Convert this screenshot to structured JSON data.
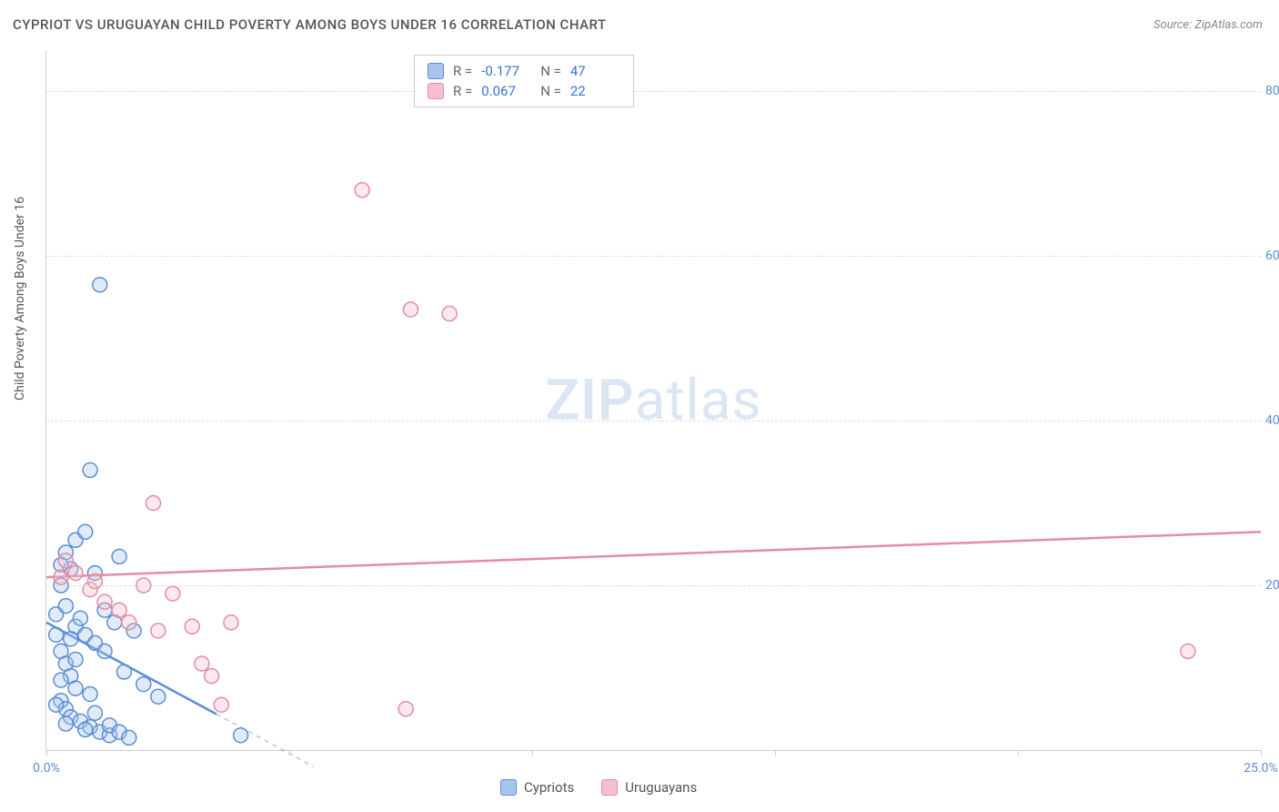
{
  "title": "CYPRIOT VS URUGUAYAN CHILD POVERTY AMONG BOYS UNDER 16 CORRELATION CHART",
  "source": "Source: ZipAtlas.com",
  "y_axis_label": "Child Poverty Among Boys Under 16",
  "watermark_bold": "ZIP",
  "watermark_rest": "atlas",
  "chart": {
    "type": "scatter",
    "xlim": [
      0,
      25
    ],
    "ylim": [
      0,
      85
    ],
    "y_ticks": [
      20,
      40,
      60,
      80
    ],
    "y_tick_labels": [
      "20.0%",
      "40.0%",
      "60.0%",
      "80.0%"
    ],
    "x_tick_positions": [
      0,
      5,
      10,
      15,
      20,
      25
    ],
    "x_labels": {
      "0": "0.0%",
      "25": "25.0%"
    },
    "grid_color": "#dddddd",
    "background_color": "#ffffff",
    "marker_radius": 8,
    "marker_stroke_width": 1.5,
    "marker_fill_opacity": 0.35,
    "series": [
      {
        "name": "Cypriots",
        "stroke": "#5b8dd6",
        "fill": "#a7c5ec",
        "R": "-0.177",
        "N": "47",
        "trend": {
          "x1": 0,
          "y1": 15.5,
          "x2": 5.5,
          "y2": -2,
          "solid_until_x": 3.5
        },
        "points": [
          [
            0.2,
            14.0
          ],
          [
            0.3,
            12.0
          ],
          [
            0.4,
            10.5
          ],
          [
            0.5,
            9.0
          ],
          [
            0.6,
            7.5
          ],
          [
            0.3,
            6.0
          ],
          [
            0.4,
            5.0
          ],
          [
            0.5,
            4.0
          ],
          [
            0.7,
            3.5
          ],
          [
            0.9,
            2.8
          ],
          [
            1.1,
            2.2
          ],
          [
            1.3,
            1.8
          ],
          [
            0.2,
            16.5
          ],
          [
            0.4,
            17.5
          ],
          [
            0.6,
            15.0
          ],
          [
            0.8,
            14.0
          ],
          [
            1.0,
            13.0
          ],
          [
            1.2,
            12.0
          ],
          [
            0.3,
            20.0
          ],
          [
            0.5,
            22.0
          ],
          [
            0.4,
            24.0
          ],
          [
            0.6,
            25.5
          ],
          [
            0.8,
            26.5
          ],
          [
            0.3,
            22.5
          ],
          [
            1.5,
            23.5
          ],
          [
            1.8,
            14.5
          ],
          [
            1.4,
            15.5
          ],
          [
            1.6,
            9.5
          ],
          [
            2.0,
            8.0
          ],
          [
            2.3,
            6.5
          ],
          [
            0.9,
            34.0
          ],
          [
            1.1,
            56.5
          ],
          [
            1.3,
            3.0
          ],
          [
            1.5,
            2.2
          ],
          [
            1.7,
            1.5
          ],
          [
            1.0,
            4.5
          ],
          [
            0.6,
            11.0
          ],
          [
            0.8,
            2.5
          ],
          [
            0.4,
            3.2
          ],
          [
            0.2,
            5.5
          ],
          [
            4.0,
            1.8
          ],
          [
            0.5,
            13.5
          ],
          [
            0.7,
            16.0
          ],
          [
            1.2,
            17.0
          ],
          [
            0.3,
            8.5
          ],
          [
            0.9,
            6.8
          ],
          [
            1.0,
            21.5
          ]
        ]
      },
      {
        "name": "Uruguayans",
        "stroke": "#e68aa5",
        "fill": "#f4c0cf",
        "R": "0.067",
        "N": "22",
        "trend": {
          "x1": 0,
          "y1": 21.0,
          "x2": 25,
          "y2": 26.5
        },
        "points": [
          [
            0.3,
            21.0
          ],
          [
            0.6,
            21.5
          ],
          [
            0.9,
            19.5
          ],
          [
            1.2,
            18.0
          ],
          [
            1.5,
            17.0
          ],
          [
            1.7,
            15.5
          ],
          [
            2.0,
            20.0
          ],
          [
            2.3,
            14.5
          ],
          [
            2.6,
            19.0
          ],
          [
            2.2,
            30.0
          ],
          [
            3.0,
            15.0
          ],
          [
            3.2,
            10.5
          ],
          [
            3.4,
            9.0
          ],
          [
            3.6,
            5.5
          ],
          [
            3.8,
            15.5
          ],
          [
            6.5,
            68.0
          ],
          [
            7.5,
            53.5
          ],
          [
            8.3,
            53.0
          ],
          [
            7.4,
            5.0
          ],
          [
            23.5,
            12.0
          ],
          [
            0.4,
            23.0
          ],
          [
            1.0,
            20.5
          ]
        ]
      }
    ]
  },
  "stats_legend": {
    "r_label": "R =",
    "n_label": "N ="
  },
  "colors": {
    "axis": "#cccccc",
    "text": "#555555",
    "value": "#3b72d4",
    "tick": "#5b8dd6"
  }
}
